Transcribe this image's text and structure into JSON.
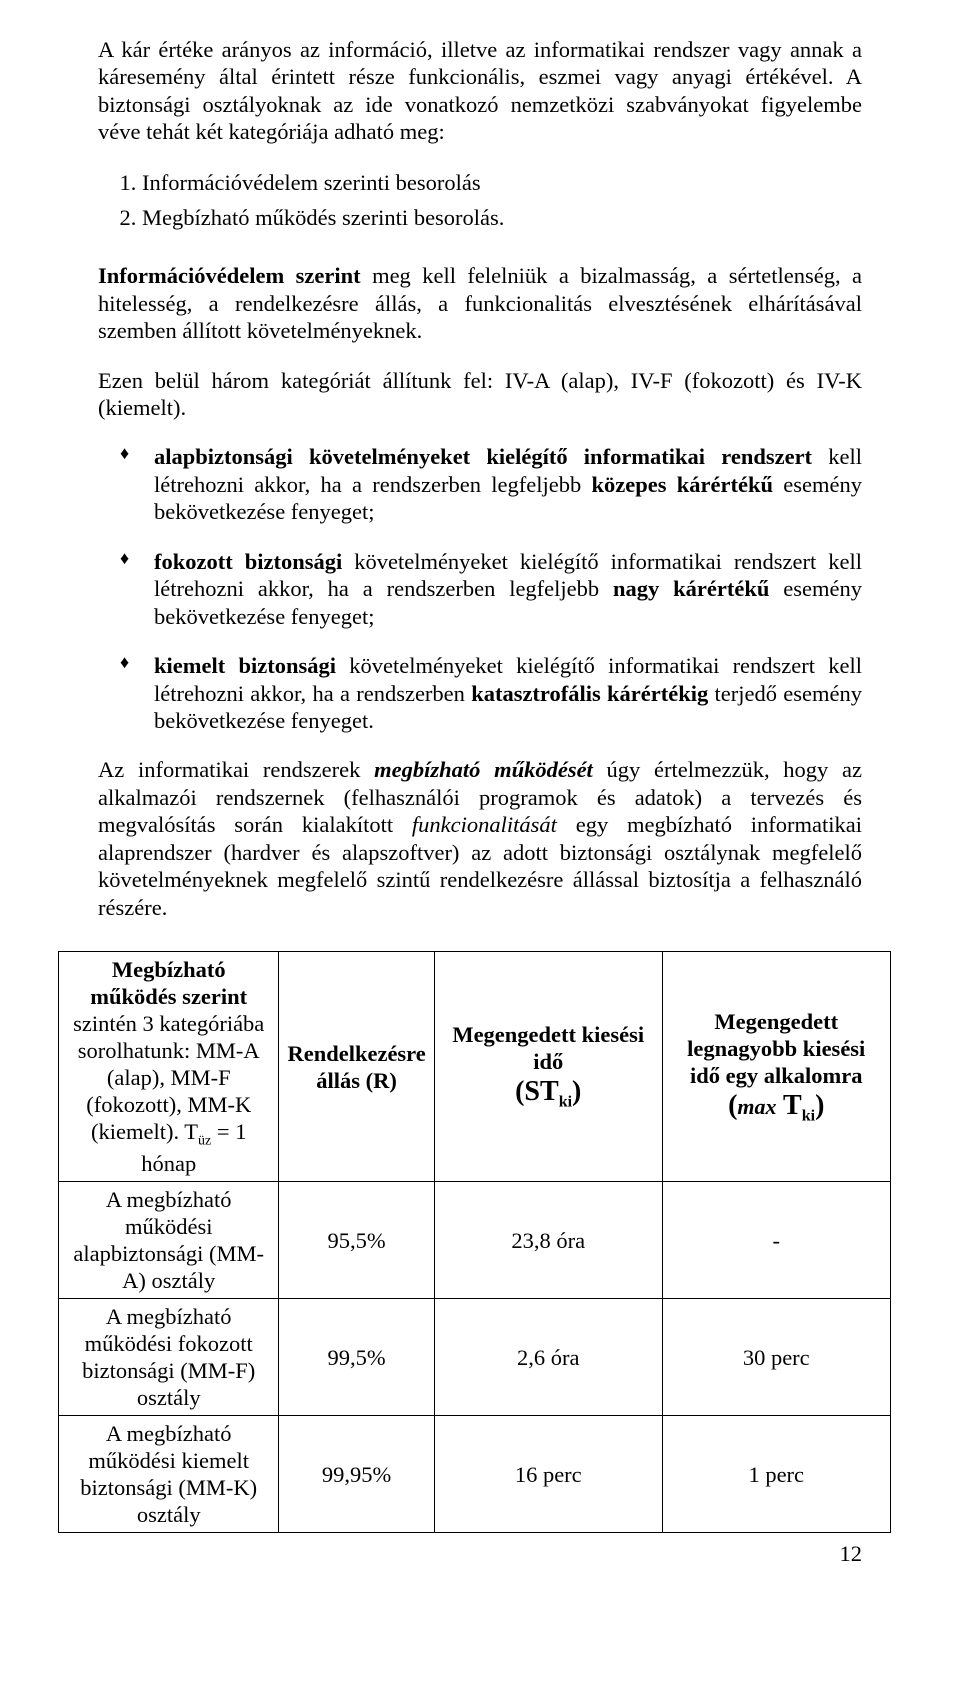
{
  "p1": "A kár értéke arányos az információ, illetve az informatikai rendszer vagy annak a káresemény által érintett része funkcionális, eszmei vagy anyagi értékével. A biztonsági osztályoknak az ide vonatkozó nemzetközi szabványokat figyelembe véve tehát két kategóriája adható meg:",
  "ol": {
    "i1": "Információvédelem szerinti besorolás",
    "i2": "Megbízható működés szerinti besorolás."
  },
  "p2": {
    "b": "Információvédelem szerint",
    "rest": " meg kell felelniük a bizalmasság, a sértetlenség, a hitelesség, a rendelkezésre állás, a funkcionalitás elvesztésének elhárításával szemben állított követelményeknek."
  },
  "p3": "Ezen belül három kategóriát állítunk fel: IV-A (alap), IV-F (fokozott) és IV-K (kiemelt).",
  "b1": {
    "b1": "alapbiztonsági követelményeket kielégítő informatikai rendszert",
    "t1": " kell létrehozni akkor, ha a rendszerben legfeljebb ",
    "b2": "közepes kárértékű",
    "t2": " esemény bekövetkezése fenyeget;"
  },
  "b2": {
    "b1": "fokozott biztonsági",
    "t1": " követelményeket kielégítő informatikai rendszert kell létrehozni akkor, ha a rendszerben legfeljebb ",
    "b2": "nagy kárértékű",
    "t2": " esemény bekövetkezése fenyeget;"
  },
  "b3": {
    "b1": "kiemelt biztonsági",
    "t1": " követelményeket kielégítő informatikai rendszert kell létrehozni akkor, ha a rendszerben ",
    "b2": "katasztrofális kárértékig",
    "t2": " terjedő esemény bekövetkezése fenyeget."
  },
  "p4": {
    "t1": "Az informatikai rendszerek ",
    "bi": "megbízható működését",
    "t2": " úgy értelmezzük, hogy az alkalmazói rendszernek (felhasználói programok és adatok) a tervezés és megvalósítás során kialakított ",
    "i": "funkcionalitását",
    "t3": " egy megbízható informatikai alaprendszer (hardver és alapszoftver) az adott biztonsági osztálynak megfelelő követelményeknek megfelelő szintű rendelkezésre állással biztosítja a felhasználó részére."
  },
  "table": {
    "h0a": "Megbízható működés szerint",
    "h0b": " szintén 3 kategóriába sorolhatunk: MM-A (alap), MM-F (fokozott), MM-K (kiemelt). T",
    "h0sub": "üz",
    "h0c": " = 1 hónap",
    "h1": "Rendelkezésre állás (R)",
    "h2a": "Megengedett kiesési idő",
    "h2sym_pre": "(S",
    "h2sym_main": "T",
    "h2sym_sub": "ki",
    "h2sym_post": ")",
    "h3a": "Megengedett legnagyobb kiesési idő egy alkalomra",
    "h3sym_pre": "(",
    "h3sym_i": "max",
    "h3sym_main": " T",
    "h3sym_sub": "ki",
    "h3sym_post": ")",
    "rows": [
      {
        "c0": "A megbízható működési alapbiztonsági (MM-A) osztály",
        "c1": "95,5%",
        "c2": "23,8 óra",
        "c3": "-"
      },
      {
        "c0": "A megbízható működési fokozott biztonsági (MM-F) osztály",
        "c1": "99,5%",
        "c2": "2,6 óra",
        "c3": "30 perc"
      },
      {
        "c0": "A megbízható működési kiemelt biztonsági (MM-K) osztály",
        "c1": "99,95%",
        "c2": "16 perc",
        "c3": "1 perc"
      }
    ]
  },
  "pageno": "12"
}
